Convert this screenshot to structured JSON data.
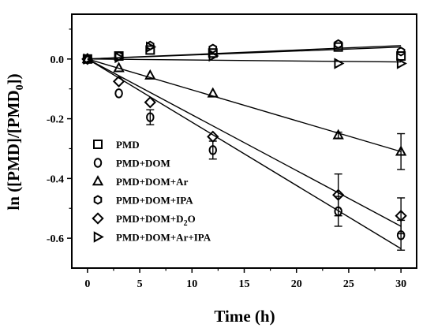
{
  "chart_data": {
    "type": "scatter",
    "xlabel": "Time (h)",
    "ylabel": "ln ([PMD]/[PMD₀])",
    "xlim": [
      -1.5,
      31.5
    ],
    "ylim": [
      -0.7,
      0.15
    ],
    "xticks": [
      0,
      5,
      10,
      15,
      20,
      25,
      30
    ],
    "yticks": [
      0.0,
      -0.2,
      -0.4,
      -0.6
    ],
    "ytick_labels": [
      "0.0",
      "-0.2",
      "-0.4",
      "-0.6"
    ],
    "legend_position": "lower-left",
    "series": [
      {
        "name": "PMD",
        "marker": "square",
        "x": [
          0,
          3,
          6,
          12,
          24,
          30
        ],
        "y": [
          0.0,
          0.01,
          0.03,
          0.02,
          0.04,
          0.01
        ],
        "err": [
          0,
          0,
          0,
          0,
          0,
          0
        ],
        "fit": [
          0.0,
          0.04
        ]
      },
      {
        "name": "PMD+DOM",
        "marker": "circle",
        "x": [
          0,
          3,
          6,
          12,
          24,
          30
        ],
        "y": [
          0.0,
          -0.115,
          -0.195,
          -0.305,
          -0.51,
          -0.59
        ],
        "err": [
          0,
          0,
          0.025,
          0.03,
          0.05,
          0.05
        ],
        "fit": [
          0.0,
          -0.635
        ]
      },
      {
        "name": "PMD+DOM+Ar",
        "marker": "triangle",
        "x": [
          0,
          3,
          6,
          12,
          24,
          30
        ],
        "y": [
          0.0,
          -0.03,
          -0.055,
          -0.115,
          -0.255,
          -0.31
        ],
        "err": [
          0,
          0,
          0,
          0,
          0.01,
          0.06
        ],
        "fit": [
          0.0,
          -0.31
        ]
      },
      {
        "name": "PMD+DOM+IPA",
        "marker": "hexagon",
        "x": [
          0,
          3,
          6,
          12,
          24,
          30
        ],
        "y": [
          0.0,
          0.01,
          0.045,
          0.035,
          0.05,
          0.025
        ],
        "err": [
          0,
          0,
          0,
          0,
          0,
          0
        ],
        "fit": [
          0.0,
          0.045
        ]
      },
      {
        "name": "PMD+DOM+D₂O",
        "marker": "diamond",
        "x": [
          0,
          3,
          6,
          12,
          24,
          30
        ],
        "y": [
          0.0,
          -0.075,
          -0.145,
          -0.26,
          -0.455,
          -0.525
        ],
        "err": [
          0,
          0,
          0,
          0,
          0.07,
          0.06
        ],
        "fit": [
          0.0,
          -0.56
        ]
      },
      {
        "name": "PMD+DOM+Ar+IPA",
        "marker": "triangle-right",
        "x": [
          0,
          3,
          6,
          12,
          24,
          30
        ],
        "y": [
          0.0,
          0.005,
          0.04,
          0.01,
          -0.015,
          -0.015
        ],
        "err": [
          0,
          0,
          0,
          0,
          0,
          0
        ],
        "fit": [
          0.0,
          -0.01
        ]
      }
    ]
  }
}
